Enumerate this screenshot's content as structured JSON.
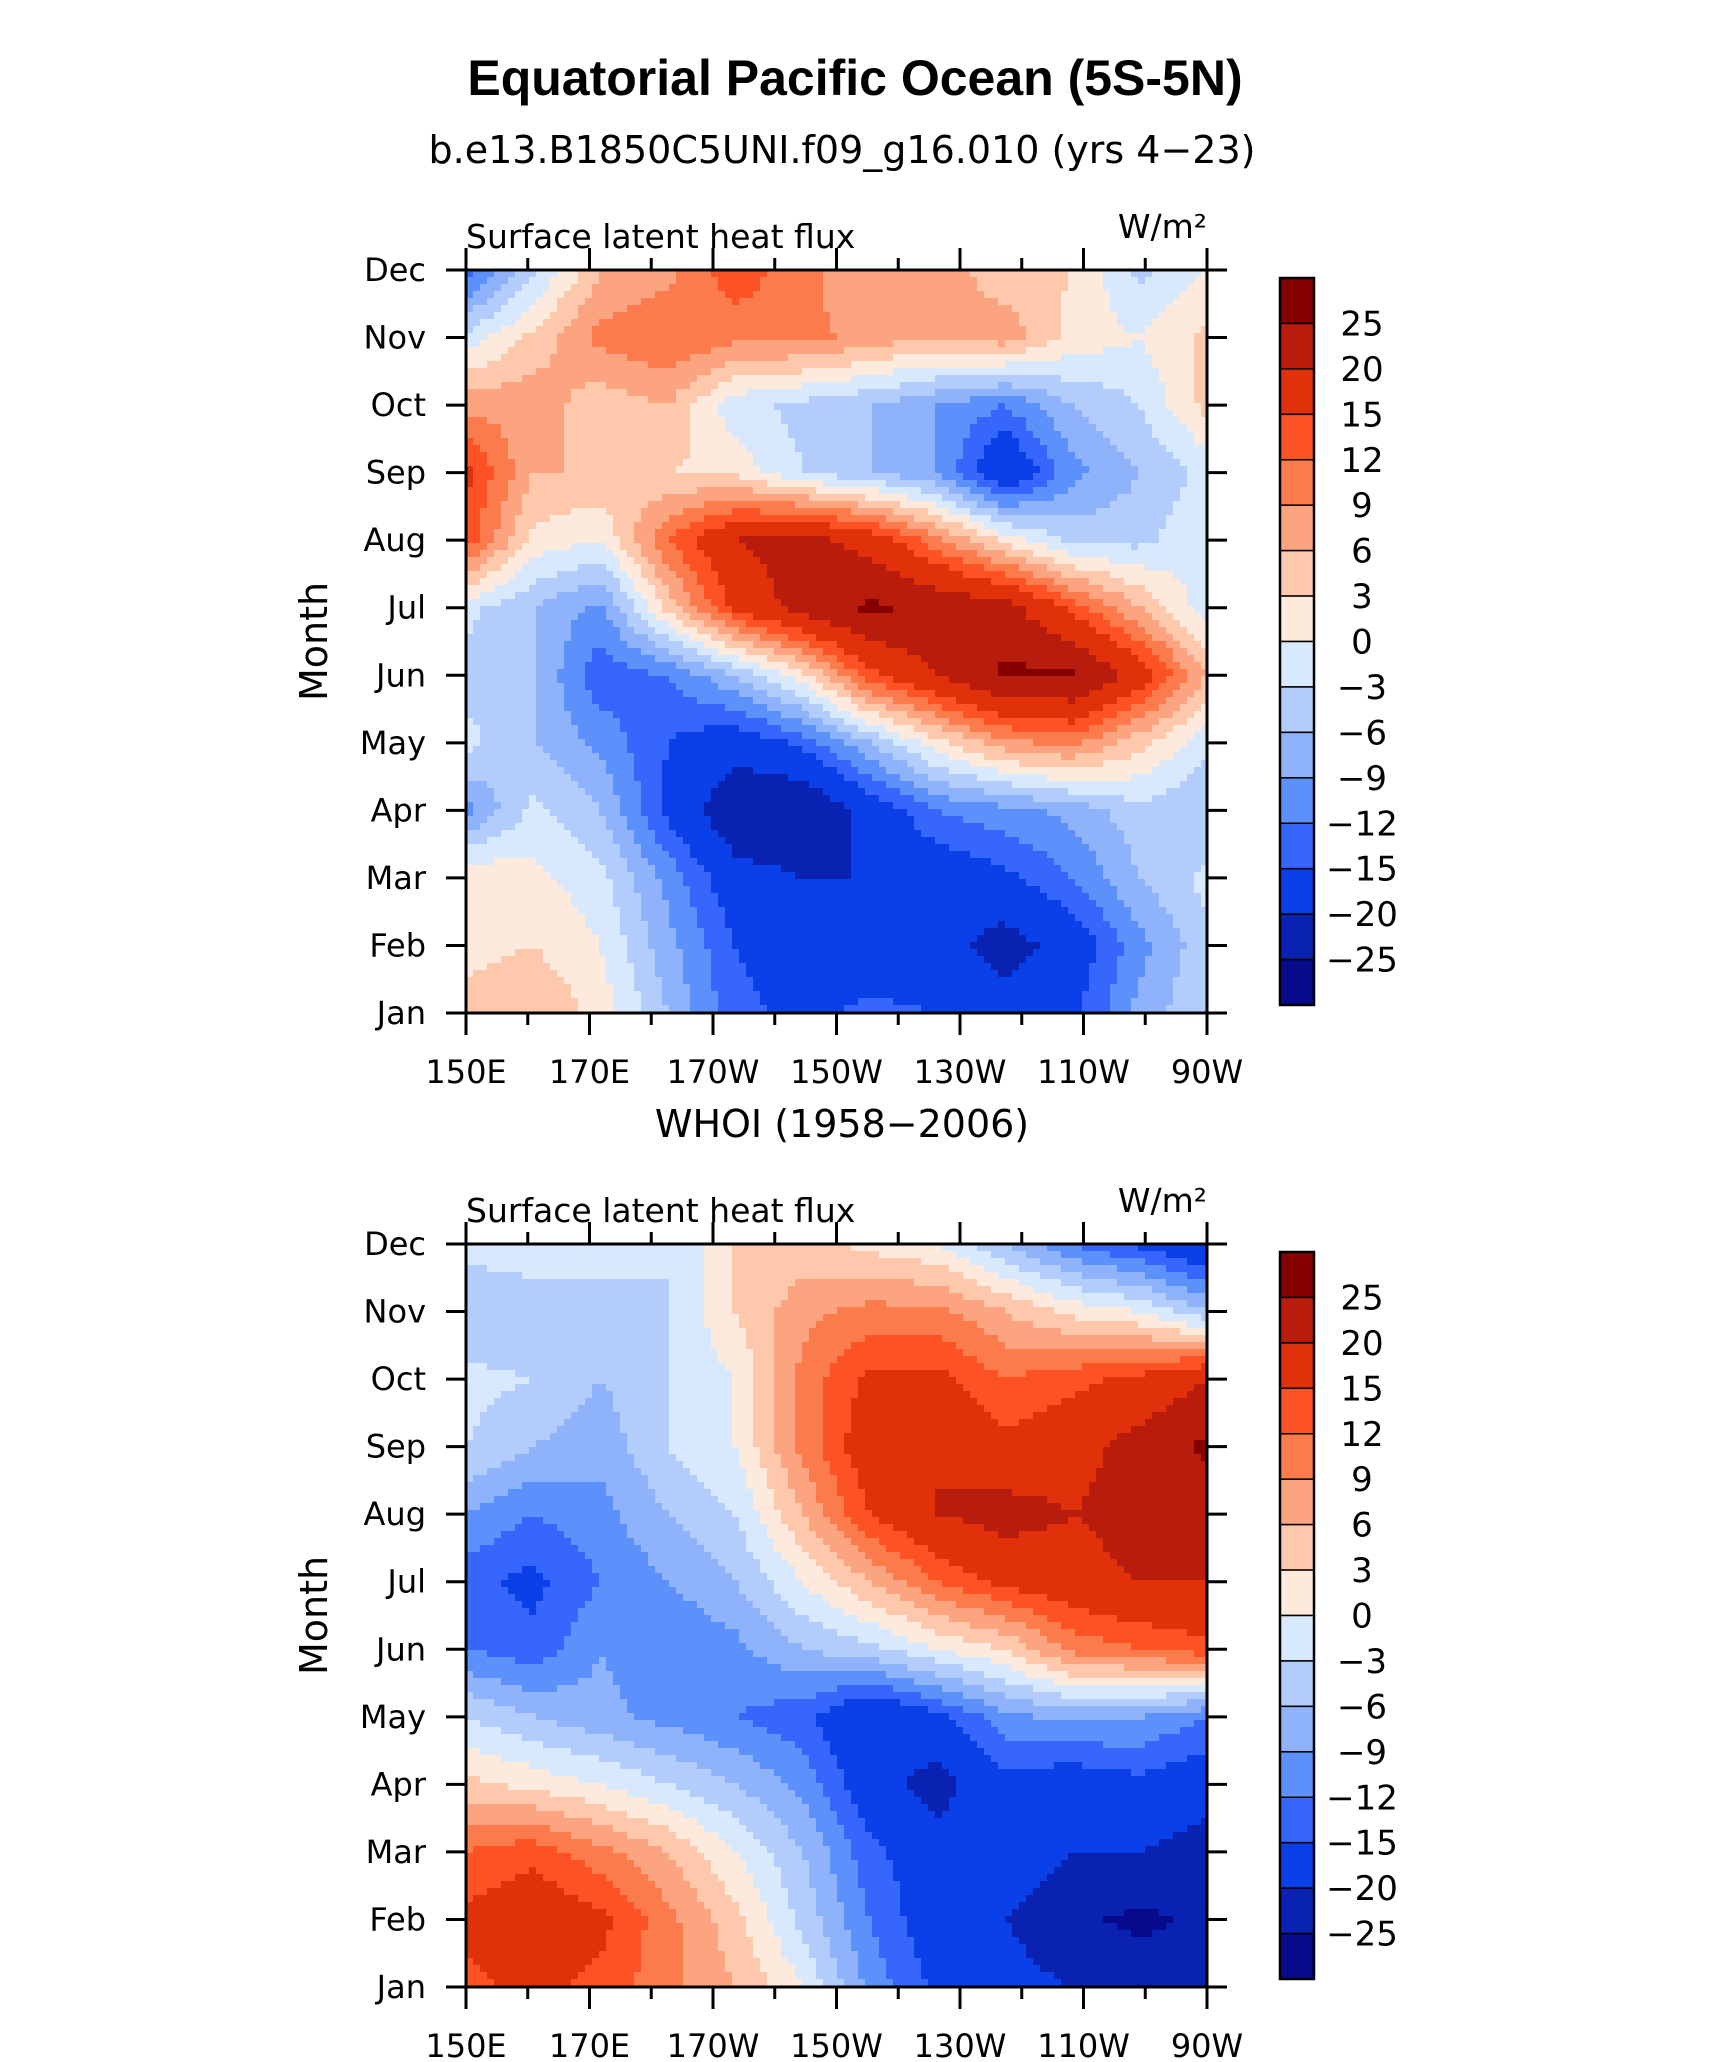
{
  "title": "Equatorial Pacific Ocean (5S-5N)",
  "colormap": {
    "levels": [
      "25",
      "20",
      "15",
      "12",
      "9",
      "6",
      "3",
      "0",
      "−3",
      "−6",
      "−9",
      "−12",
      "−15",
      "−20",
      "−25"
    ],
    "colors_top_to_bottom": [
      "#870000",
      "#b71c0c",
      "#e1310a",
      "#fd5223",
      "#fc7b4d",
      "#fca480",
      "#fdc8ab",
      "#feeadc",
      "#d8e9fd",
      "#b2cdfb",
      "#8fb3fb",
      "#5c91fc",
      "#3766fc",
      "#0b3fe8",
      "#0a22b2",
      "#080a8e"
    ]
  },
  "chart_data": [
    {
      "type": "heatmap",
      "panel_title": "b.e13.B1850C5UNI.f09_g16.010 (yrs 4−23)",
      "left_label": "Surface latent heat flux",
      "units_label": "W/m²",
      "ylabel": "Month",
      "x_ticks": [
        "150E",
        "170E",
        "170W",
        "150W",
        "130W",
        "110W",
        "90W"
      ],
      "y_ticks": [
        "Jan",
        "Feb",
        "Mar",
        "Apr",
        "May",
        "Jun",
        "Jul",
        "Aug",
        "Sep",
        "Oct",
        "Nov",
        "Dec"
      ],
      "xlim_deg_east": [
        150,
        270
      ],
      "values": [
        [
          4,
          6,
          2,
          -6,
          -14,
          -16,
          -14,
          -15,
          -18,
          -16,
          -8,
          -3
        ],
        [
          2,
          3,
          0,
          -8,
          -15,
          -18,
          -18,
          -18,
          -22,
          -18,
          -10,
          -4
        ],
        [
          3,
          1,
          -2,
          -10,
          -18,
          -20,
          -20,
          -18,
          -16,
          -12,
          -6,
          -2
        ],
        [
          -10,
          -2,
          -6,
          -16,
          -24,
          -25,
          -18,
          -12,
          -10,
          -8,
          -4,
          -6
        ],
        [
          -2,
          -6,
          -10,
          -15,
          -18,
          -14,
          -6,
          2,
          8,
          10,
          4,
          -2
        ],
        [
          -4,
          -6,
          -14,
          -12,
          -6,
          2,
          14,
          20,
          26,
          26,
          18,
          6
        ],
        [
          -2,
          -6,
          -10,
          4,
          16,
          22,
          26,
          24,
          22,
          14,
          6,
          -2
        ],
        [
          14,
          2,
          0,
          12,
          20,
          22,
          18,
          10,
          2,
          -4,
          -4,
          0
        ],
        [
          16,
          6,
          6,
          3,
          2,
          -3,
          -6,
          -9,
          -20,
          -10,
          -6,
          -2
        ],
        [
          8,
          8,
          4,
          6,
          -2,
          -4,
          -6,
          -9,
          -12,
          -6,
          -3,
          4
        ],
        [
          -2,
          4,
          10,
          12,
          10,
          10,
          8,
          6,
          8,
          2,
          0,
          4
        ],
        [
          -14,
          -4,
          6,
          8,
          14,
          10,
          6,
          8,
          4,
          3,
          -4,
          0
        ]
      ]
    },
    {
      "type": "heatmap",
      "panel_title": "WHOI (1958−2006)",
      "left_label": "Surface latent heat flux",
      "units_label": "W/m²",
      "ylabel": "Month",
      "x_ticks": [
        "150E",
        "170E",
        "170W",
        "150W",
        "130W",
        "110W",
        "90W"
      ],
      "y_ticks": [
        "Jan",
        "Feb",
        "Mar",
        "Apr",
        "May",
        "Jun",
        "Jul",
        "Aug",
        "Sep",
        "Oct",
        "Nov",
        "Dec"
      ],
      "xlim_deg_east": [
        150,
        270
      ],
      "values": [
        [
          14,
          16,
          14,
          10,
          6,
          0,
          -10,
          -16,
          -18,
          -20,
          -22,
          -25
        ],
        [
          16,
          18,
          16,
          10,
          4,
          -4,
          -12,
          -18,
          -20,
          -24,
          -26,
          -24
        ],
        [
          12,
          14,
          10,
          6,
          0,
          -6,
          -14,
          -18,
          -16,
          -20,
          -20,
          -22
        ],
        [
          4,
          2,
          0,
          -3,
          -6,
          -10,
          -18,
          -22,
          -16,
          -18,
          -16,
          -18
        ],
        [
          -3,
          -6,
          -8,
          -10,
          -12,
          -14,
          -20,
          -16,
          -10,
          -8,
          -9,
          -12
        ],
        [
          -12,
          -14,
          -9,
          -12,
          -10,
          -6,
          -4,
          0,
          3,
          10,
          12,
          14
        ],
        [
          -14,
          -16,
          -12,
          -9,
          -6,
          0,
          6,
          12,
          16,
          18,
          20,
          20
        ],
        [
          -9,
          -12,
          -10,
          -6,
          -3,
          6,
          15,
          20,
          22,
          20,
          22,
          22
        ],
        [
          -3,
          -6,
          -8,
          -3,
          0,
          10,
          18,
          20,
          16,
          18,
          22,
          26
        ],
        [
          -2,
          -3,
          -6,
          -3,
          0,
          10,
          16,
          16,
          12,
          14,
          16,
          20
        ],
        [
          -6,
          -6,
          -6,
          -3,
          3,
          8,
          10,
          10,
          6,
          2,
          0,
          -6
        ],
        [
          -2,
          0,
          0,
          -3,
          3,
          4,
          2,
          0,
          -6,
          -12,
          -16,
          -20
        ]
      ]
    }
  ]
}
